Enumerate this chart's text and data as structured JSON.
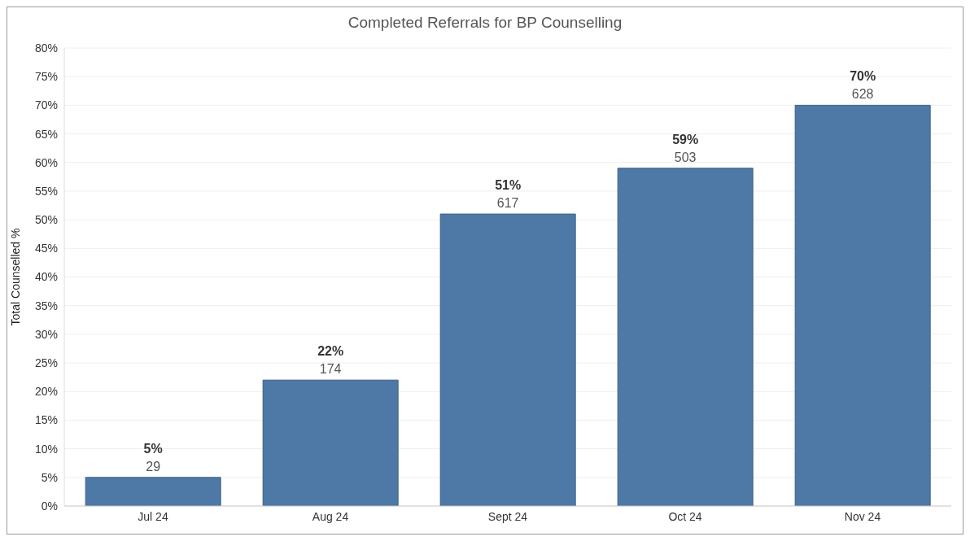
{
  "chart_data": {
    "type": "bar",
    "title": "Completed Referrals for BP Counselling",
    "ylabel": "Total Counselled %",
    "categories": [
      "Jul 24",
      "Aug 24",
      "Sept 24",
      "Oct 24",
      "Nov 24"
    ],
    "values": [
      5,
      22,
      51,
      59,
      70
    ],
    "color": "#4e79a7",
    "value_labels": [
      "5%",
      "22%",
      "51%",
      "59%",
      "70%"
    ],
    "annotations": [
      {
        "text": "29",
        "x": "Jul 24",
        "y": 5
      },
      {
        "text": "174",
        "x": "Aug 24",
        "y": 22
      },
      {
        "text": "617",
        "x": "Sept 24",
        "y": 51
      },
      {
        "text": "503",
        "x": "Oct 24",
        "y": 59
      },
      {
        "text": "628",
        "x": "Nov 24",
        "y": 70
      }
    ],
    "ylim": [
      0,
      80
    ],
    "yticks": [
      {
        "value": 0,
        "label": "0%"
      },
      {
        "value": 5,
        "label": "5%"
      },
      {
        "value": 10,
        "label": "10%"
      },
      {
        "value": 15,
        "label": "15%"
      },
      {
        "value": 20,
        "label": "20%"
      },
      {
        "value": 25,
        "label": "25%"
      },
      {
        "value": 30,
        "label": "30%"
      },
      {
        "value": 35,
        "label": "35%"
      },
      {
        "value": 40,
        "label": "40%"
      },
      {
        "value": 45,
        "label": "45%"
      },
      {
        "value": 50,
        "label": "50%"
      },
      {
        "value": 55,
        "label": "55%"
      },
      {
        "value": 60,
        "label": "60%"
      },
      {
        "value": 65,
        "label": "65%"
      },
      {
        "value": 70,
        "label": "70%"
      },
      {
        "value": 75,
        "label": "75%"
      },
      {
        "value": 80,
        "label": "80%"
      }
    ],
    "grid": "y",
    "legend": false
  }
}
